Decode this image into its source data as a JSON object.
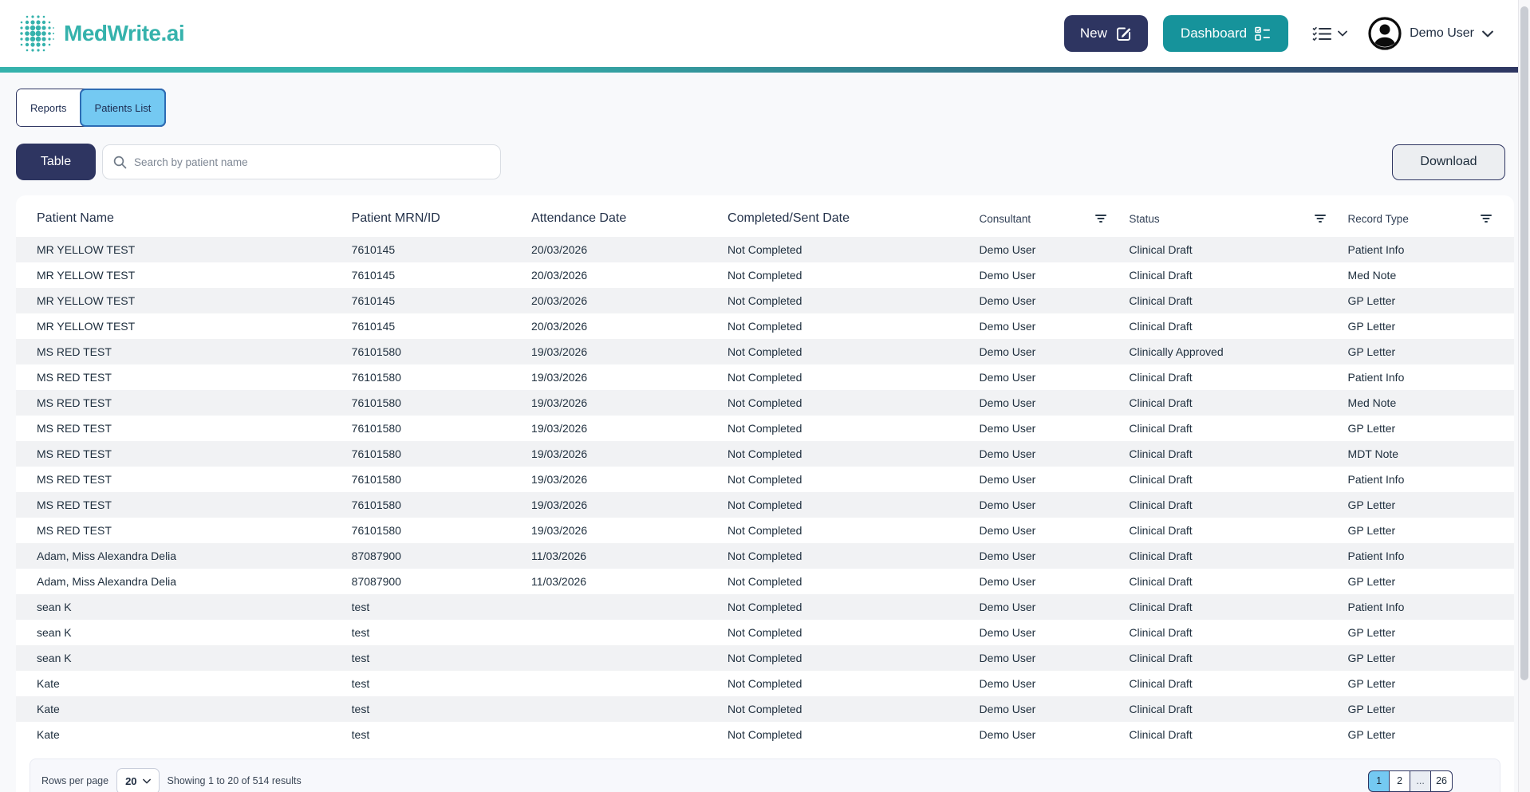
{
  "brand": {
    "name": "MedWrite.ai"
  },
  "header": {
    "new_button": "New",
    "dashboard_button": "Dashboard",
    "user_name": "Demo User"
  },
  "tabs": [
    {
      "label": "Reports",
      "active": false
    },
    {
      "label": "Patients List",
      "active": true
    }
  ],
  "toolbar": {
    "table_button": "Table",
    "search_placeholder": "Search by patient name",
    "search_value": "",
    "download_button": "Download"
  },
  "table": {
    "columns": [
      {
        "label": "Patient Name",
        "filter": false,
        "small": false
      },
      {
        "label": "Patient MRN/ID",
        "filter": false,
        "small": false
      },
      {
        "label": "Attendance Date",
        "filter": false,
        "small": false
      },
      {
        "label": "Completed/Sent Date",
        "filter": false,
        "small": false
      },
      {
        "label": "Consultant",
        "filter": true,
        "small": true
      },
      {
        "label": "Status",
        "filter": true,
        "small": true
      },
      {
        "label": "Record Type",
        "filter": true,
        "small": true
      }
    ],
    "rows": [
      [
        "MR YELLOW TEST",
        "7610145",
        "20/03/2026",
        "Not Completed",
        "Demo User",
        "Clinical Draft",
        "Patient Info"
      ],
      [
        "MR YELLOW TEST",
        "7610145",
        "20/03/2026",
        "Not Completed",
        "Demo User",
        "Clinical Draft",
        "Med Note"
      ],
      [
        "MR YELLOW TEST",
        "7610145",
        "20/03/2026",
        "Not Completed",
        "Demo User",
        "Clinical Draft",
        "GP Letter"
      ],
      [
        "MR YELLOW TEST",
        "7610145",
        "20/03/2026",
        "Not Completed",
        "Demo User",
        "Clinical Draft",
        "GP Letter"
      ],
      [
        "MS RED TEST",
        "76101580",
        "19/03/2026",
        "Not Completed",
        "Demo User",
        "Clinically Approved",
        "GP Letter"
      ],
      [
        "MS RED TEST",
        "76101580",
        "19/03/2026",
        "Not Completed",
        "Demo User",
        "Clinical Draft",
        "Patient Info"
      ],
      [
        "MS RED TEST",
        "76101580",
        "19/03/2026",
        "Not Completed",
        "Demo User",
        "Clinical Draft",
        "Med Note"
      ],
      [
        "MS RED TEST",
        "76101580",
        "19/03/2026",
        "Not Completed",
        "Demo User",
        "Clinical Draft",
        "GP Letter"
      ],
      [
        "MS RED TEST",
        "76101580",
        "19/03/2026",
        "Not Completed",
        "Demo User",
        "Clinical Draft",
        "MDT Note"
      ],
      [
        "MS RED TEST",
        "76101580",
        "19/03/2026",
        "Not Completed",
        "Demo User",
        "Clinical Draft",
        "Patient Info"
      ],
      [
        "MS RED TEST",
        "76101580",
        "19/03/2026",
        "Not Completed",
        "Demo User",
        "Clinical Draft",
        "GP Letter"
      ],
      [
        "MS RED TEST",
        "76101580",
        "19/03/2026",
        "Not Completed",
        "Demo User",
        "Clinical Draft",
        "GP Letter"
      ],
      [
        "Adam, Miss Alexandra Delia",
        "87087900",
        "11/03/2026",
        "Not Completed",
        "Demo User",
        "Clinical Draft",
        "Patient Info"
      ],
      [
        "Adam, Miss Alexandra Delia",
        "87087900",
        "11/03/2026",
        "Not Completed",
        "Demo User",
        "Clinical Draft",
        "GP Letter"
      ],
      [
        "sean K",
        "test",
        "",
        "Not Completed",
        "Demo User",
        "Clinical Draft",
        "Patient Info"
      ],
      [
        "sean K",
        "test",
        "",
        "Not Completed",
        "Demo User",
        "Clinical Draft",
        "GP Letter"
      ],
      [
        "sean K",
        "test",
        "",
        "Not Completed",
        "Demo User",
        "Clinical Draft",
        "GP Letter"
      ],
      [
        "Kate",
        "test",
        "",
        "Not Completed",
        "Demo User",
        "Clinical Draft",
        "GP Letter"
      ],
      [
        "Kate",
        "test",
        "",
        "Not Completed",
        "Demo User",
        "Clinical Draft",
        "GP Letter"
      ],
      [
        "Kate",
        "test",
        "",
        "Not Completed",
        "Demo User",
        "Clinical Draft",
        "GP Letter"
      ]
    ]
  },
  "pagination": {
    "rows_per_page_label": "Rows per page",
    "rows_per_page_value": "20",
    "summary": "Showing 1 to 20 of 514 results",
    "pages": [
      {
        "label": "1",
        "active": true,
        "ellipsis": false
      },
      {
        "label": "2",
        "active": false,
        "ellipsis": false
      },
      {
        "label": "...",
        "active": false,
        "ellipsis": true
      },
      {
        "label": "26",
        "active": false,
        "ellipsis": false
      }
    ]
  },
  "icons": {
    "logo": "dotted-sphere-icon",
    "new": "edit-square-icon",
    "dashboard": "checklist-icon",
    "list_menu": "list-checks-icon",
    "user": "avatar-icon",
    "search": "search-icon",
    "filter": "filter-bars-icon",
    "chevron": "chevron-down-icon"
  },
  "colors": {
    "navy": "#2e3561",
    "teal": "#16939b",
    "logo-teal": "#35b2ac",
    "sky": "#74c9f2",
    "sky-border": "#2d6cb4",
    "row-alt": "#f1f2f4",
    "page-bg": "#f8f9fb",
    "text": "#22303e"
  }
}
